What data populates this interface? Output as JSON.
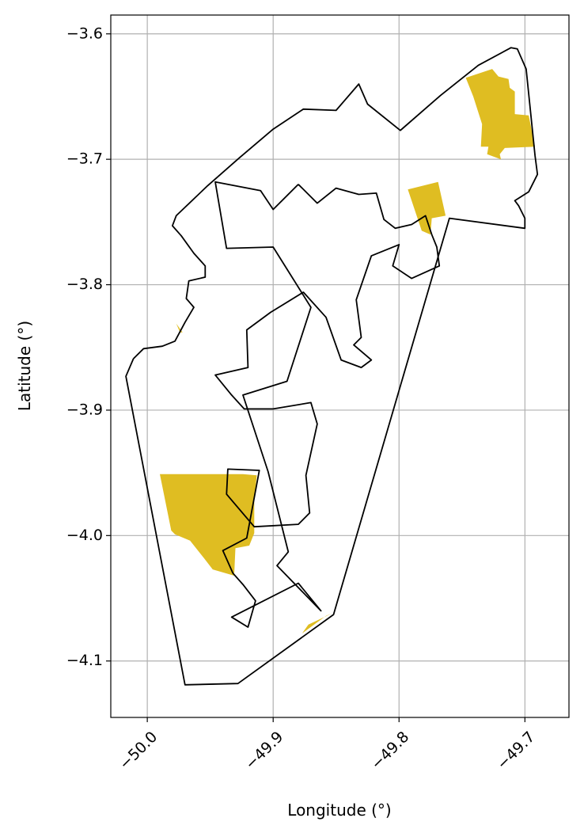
{
  "map": {
    "xlabel": "Longitude (°)",
    "ylabel": "Latitude (°)",
    "xlim": [
      -50.029,
      -49.665
    ],
    "ylim": [
      -4.145,
      -3.585
    ],
    "x_ticks": [
      {
        "value": -50.0,
        "label": "−50.0"
      },
      {
        "value": -49.9,
        "label": "−49.9"
      },
      {
        "value": -49.8,
        "label": "−49.8"
      },
      {
        "value": -49.7,
        "label": "−49.7"
      }
    ],
    "y_ticks": [
      {
        "value": -3.6,
        "label": "−3.6"
      },
      {
        "value": -3.7,
        "label": "−3.7"
      },
      {
        "value": -3.8,
        "label": "−3.8"
      },
      {
        "value": -3.9,
        "label": "−3.9"
      },
      {
        "value": -4.0,
        "label": "−4.0"
      },
      {
        "value": -4.1,
        "label": "−4.1"
      }
    ],
    "grid": true,
    "colors": {
      "patch_fill": "#dfbd22",
      "outline": "#000000",
      "grid": "#b0b0b0"
    },
    "boundary_outline": [
      [
        -50.011,
        -3.859
      ],
      [
        -50.003,
        -3.851
      ],
      [
        -49.988,
        -3.849
      ],
      [
        -49.978,
        -3.845
      ],
      [
        -49.97,
        -3.83
      ],
      [
        -49.963,
        -3.818
      ],
      [
        -49.969,
        -3.811
      ],
      [
        -49.967,
        -3.797
      ],
      [
        -49.954,
        -3.794
      ],
      [
        -49.954,
        -3.785
      ],
      [
        -49.963,
        -3.775
      ],
      [
        -49.973,
        -3.761
      ],
      [
        -49.98,
        -3.753
      ],
      [
        -49.977,
        -3.745
      ],
      [
        -49.952,
        -3.721
      ],
      [
        -49.927,
        -3.699
      ],
      [
        -49.9,
        -3.676
      ],
      [
        -49.876,
        -3.66
      ],
      [
        -49.85,
        -3.661
      ],
      [
        -49.832,
        -3.64
      ],
      [
        -49.825,
        -3.656
      ],
      [
        -49.799,
        -3.677
      ],
      [
        -49.767,
        -3.649
      ],
      [
        -49.737,
        -3.625
      ],
      [
        -49.711,
        -3.611
      ],
      [
        -49.706,
        -3.612
      ],
      [
        -49.699,
        -3.628
      ],
      [
        -49.692,
        -3.697
      ],
      [
        -49.69,
        -3.712
      ],
      [
        -49.697,
        -3.726
      ],
      [
        -49.708,
        -3.733
      ],
      [
        -49.705,
        -3.737
      ],
      [
        -49.7,
        -3.747
      ],
      [
        -49.7,
        -3.755
      ],
      [
        -49.76,
        -3.747
      ],
      [
        -49.852,
        -4.063
      ],
      [
        -49.928,
        -4.118
      ],
      [
        -49.97,
        -4.119
      ],
      [
        -50.017,
        -3.873
      ],
      [
        -50.011,
        -3.859
      ]
    ],
    "river_outline": [
      [
        -49.88,
        -3.72
      ],
      [
        -49.865,
        -3.735
      ],
      [
        -49.85,
        -3.723
      ],
      [
        -49.832,
        -3.728
      ],
      [
        -49.818,
        -3.727
      ],
      [
        -49.812,
        -3.748
      ],
      [
        -49.803,
        -3.755
      ],
      [
        -49.79,
        -3.752
      ],
      [
        -49.779,
        -3.745
      ],
      [
        -49.774,
        -3.76
      ],
      [
        -49.77,
        -3.77
      ],
      [
        -49.768,
        -3.785
      ],
      [
        -49.79,
        -3.795
      ],
      [
        -49.805,
        -3.785
      ],
      [
        -49.8,
        -3.768
      ],
      [
        -49.822,
        -3.777
      ],
      [
        -49.834,
        -3.812
      ],
      [
        -49.83,
        -3.842
      ],
      [
        -49.836,
        -3.848
      ],
      [
        -49.822,
        -3.86
      ],
      [
        -49.83,
        -3.866
      ],
      [
        -49.846,
        -3.86
      ],
      [
        -49.858,
        -3.826
      ],
      [
        -49.876,
        -3.806
      ],
      [
        -49.902,
        -3.822
      ],
      [
        -49.921,
        -3.836
      ],
      [
        -49.92,
        -3.866
      ],
      [
        -49.946,
        -3.872
      ],
      [
        -49.933,
        -3.888
      ],
      [
        -49.923,
        -3.899
      ],
      [
        -49.9,
        -3.899
      ],
      [
        -49.87,
        -3.894
      ],
      [
        -49.865,
        -3.911
      ],
      [
        -49.874,
        -3.952
      ],
      [
        -49.871,
        -3.982
      ],
      [
        -49.88,
        -3.991
      ],
      [
        -49.915,
        -3.993
      ],
      [
        -49.937,
        -3.967
      ],
      [
        -49.936,
        -3.947
      ],
      [
        -49.911,
        -3.948
      ],
      [
        -49.921,
        -4.002
      ],
      [
        -49.94,
        -4.012
      ],
      [
        -49.932,
        -4.03
      ],
      [
        -49.924,
        -4.039
      ],
      [
        -49.914,
        -4.052
      ],
      [
        -49.92,
        -4.073
      ],
      [
        -49.933,
        -4.065
      ],
      [
        -49.88,
        -4.038
      ],
      [
        -49.862,
        -4.06
      ],
      [
        -49.897,
        -4.024
      ],
      [
        -49.888,
        -4.013
      ],
      [
        -49.904,
        -3.949
      ],
      [
        -49.924,
        -3.888
      ],
      [
        -49.889,
        -3.877
      ],
      [
        -49.87,
        -3.818
      ],
      [
        -49.9,
        -3.77
      ],
      [
        -49.937,
        -3.771
      ],
      [
        -49.946,
        -3.718
      ],
      [
        -49.91,
        -3.725
      ],
      [
        -49.9,
        -3.74
      ],
      [
        -49.88,
        -3.72
      ]
    ],
    "colored_patches": [
      [
        [
          -49.747,
          -3.635
        ],
        [
          -49.726,
          -3.628
        ],
        [
          -49.721,
          -3.634
        ],
        [
          -49.713,
          -3.636
        ],
        [
          -49.712,
          -3.643
        ],
        [
          -49.708,
          -3.646
        ],
        [
          -49.708,
          -3.664
        ],
        [
          -49.697,
          -3.665
        ],
        [
          -49.692,
          -3.69
        ],
        [
          -49.716,
          -3.691
        ],
        [
          -49.72,
          -3.696
        ],
        [
          -49.719,
          -3.7
        ],
        [
          -49.73,
          -3.696
        ],
        [
          -49.729,
          -3.69
        ],
        [
          -49.735,
          -3.69
        ],
        [
          -49.734,
          -3.672
        ],
        [
          -49.741,
          -3.65
        ],
        [
          -49.747,
          -3.635
        ]
      ],
      [
        [
          -49.793,
          -3.724
        ],
        [
          -49.769,
          -3.718
        ],
        [
          -49.763,
          -3.745
        ],
        [
          -49.774,
          -3.747
        ],
        [
          -49.775,
          -3.76
        ],
        [
          -49.782,
          -3.757
        ],
        [
          -49.793,
          -3.724
        ]
      ],
      [
        [
          -49.99,
          -3.951
        ],
        [
          -49.924,
          -3.951
        ],
        [
          -49.913,
          -3.952
        ],
        [
          -49.915,
          -3.972
        ],
        [
          -49.915,
          -3.998
        ],
        [
          -49.919,
          -4.008
        ],
        [
          -49.93,
          -4.01
        ],
        [
          -49.931,
          -4.032
        ],
        [
          -49.948,
          -4.027
        ],
        [
          -49.955,
          -4.018
        ],
        [
          -49.966,
          -4.004
        ],
        [
          -49.978,
          -3.999
        ],
        [
          -49.981,
          -3.996
        ],
        [
          -49.99,
          -3.951
        ]
      ],
      [
        [
          -49.877,
          -4.078
        ],
        [
          -49.858,
          -4.064
        ],
        [
          -49.853,
          -4.062
        ],
        [
          -49.872,
          -4.071
        ],
        [
          -49.877,
          -4.078
        ]
      ],
      [
        [
          -49.977,
          -3.831
        ],
        [
          -49.972,
          -3.838
        ],
        [
          -49.974,
          -3.838
        ],
        [
          -49.977,
          -3.831
        ]
      ]
    ]
  }
}
